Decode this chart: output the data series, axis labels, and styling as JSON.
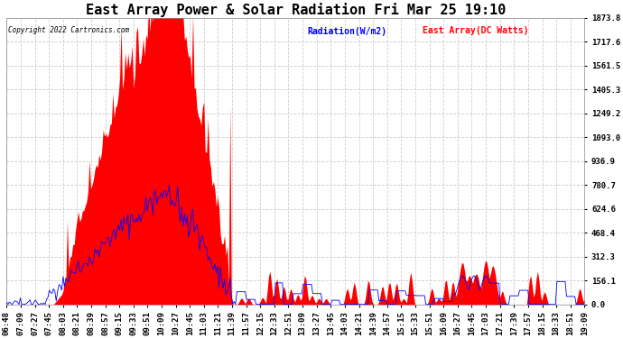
{
  "title": "East Array Power & Solar Radiation Fri Mar 25 19:10",
  "copyright_text": "Copyright 2022 Cartronics.com",
  "legend_radiation": "Radiation(W/m2)",
  "legend_array": "East Array(DC Watts)",
  "legend_radiation_color": "blue",
  "legend_array_color": "red",
  "ylabel_right_values": [
    0.0,
    156.1,
    312.3,
    468.4,
    624.6,
    780.7,
    936.9,
    1093.0,
    1249.2,
    1405.3,
    1561.5,
    1717.6,
    1873.8
  ],
  "ymax": 1873.8,
  "ymin": 0.0,
  "background_color": "#ffffff",
  "plot_background": "#ffffff",
  "grid_color": "#cccccc",
  "grid_style": "--",
  "radiation_color": "blue",
  "array_fill_color": "red",
  "title_fontsize": 11,
  "tick_fontsize": 6.5,
  "x_tick_labels": [
    "06:48",
    "07:09",
    "07:27",
    "07:45",
    "08:03",
    "08:21",
    "08:39",
    "08:57",
    "09:15",
    "09:33",
    "09:51",
    "10:09",
    "10:27",
    "10:45",
    "11:03",
    "11:21",
    "11:39",
    "11:57",
    "12:15",
    "12:33",
    "12:51",
    "13:09",
    "13:27",
    "13:45",
    "14:03",
    "14:21",
    "14:39",
    "14:57",
    "15:15",
    "15:33",
    "15:51",
    "16:09",
    "16:27",
    "16:45",
    "17:03",
    "17:21",
    "17:39",
    "17:57",
    "18:15",
    "18:33",
    "18:51",
    "19:09"
  ]
}
